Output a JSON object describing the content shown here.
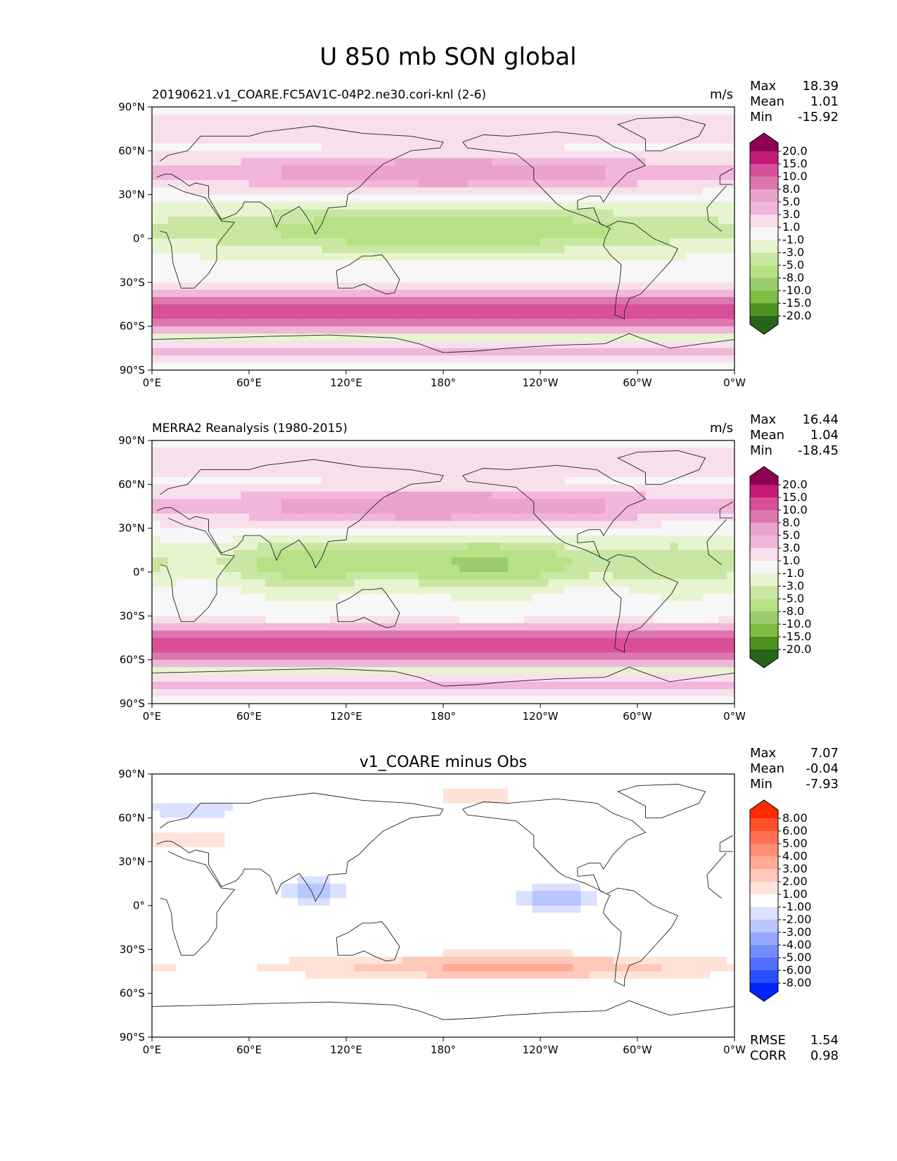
{
  "figure": {
    "title": "U 850 mb SON global"
  },
  "chart_data": [
    {
      "type": "heatmap",
      "id": "test",
      "title": "20190621.v1_COARE.FC5AV1C-04P2.ne30.cori-knl (2-6)",
      "units": "m/s",
      "stats": [
        {
          "label": "Max",
          "value": "18.39"
        },
        {
          "label": "Mean",
          "value": "1.01"
        },
        {
          "label": "Min",
          "value": "-15.92"
        }
      ],
      "colorbar": {
        "levels": [
          "20.0",
          "15.0",
          "10.0",
          "8.0",
          "5.0",
          "3.0",
          "1.0",
          "-1.0",
          "-3.0",
          "-5.0",
          "-8.0",
          "-10.0",
          "-15.0",
          "-20.0"
        ],
        "colors": [
          "#8e0152",
          "#c51b7d",
          "#d94f99",
          "#de77ae",
          "#eaa3cb",
          "#f1b6da",
          "#f8dfec",
          "#f7f7f7",
          "#e6f5d0",
          "#c9e7a3",
          "#b8e186",
          "#9bce6a",
          "#7fbc41",
          "#4d9221",
          "#276419"
        ]
      },
      "xlim": [
        0,
        360
      ],
      "ylim": [
        -90,
        90
      ]
    },
    {
      "type": "heatmap",
      "id": "ref",
      "title": "MERRA2 Reanalysis (1980-2015)",
      "units": "m/s",
      "stats": [
        {
          "label": "Max",
          "value": "16.44"
        },
        {
          "label": "Mean",
          "value": "1.04"
        },
        {
          "label": "Min",
          "value": "-18.45"
        }
      ],
      "colorbar": {
        "levels": [
          "20.0",
          "15.0",
          "10.0",
          "8.0",
          "5.0",
          "3.0",
          "1.0",
          "-1.0",
          "-3.0",
          "-5.0",
          "-8.0",
          "-10.0",
          "-15.0",
          "-20.0"
        ],
        "colors": [
          "#8e0152",
          "#c51b7d",
          "#d94f99",
          "#de77ae",
          "#eaa3cb",
          "#f1b6da",
          "#f8dfec",
          "#f7f7f7",
          "#e6f5d0",
          "#c9e7a3",
          "#b8e186",
          "#9bce6a",
          "#7fbc41",
          "#4d9221",
          "#276419"
        ]
      },
      "xlim": [
        0,
        360
      ],
      "ylim": [
        -90,
        90
      ]
    },
    {
      "type": "heatmap",
      "id": "diff",
      "title": "v1_COARE minus Obs",
      "units": "",
      "stats": [
        {
          "label": "Max",
          "value": "7.07"
        },
        {
          "label": "Mean",
          "value": "-0.04"
        },
        {
          "label": "Min",
          "value": "-7.93"
        }
      ],
      "metrics": [
        {
          "label": "RMSE",
          "value": "1.54"
        },
        {
          "label": "CORR",
          "value": "0.98"
        }
      ],
      "colorbar": {
        "levels": [
          "8.00",
          "6.00",
          "5.00",
          "4.00",
          "3.00",
          "2.00",
          "1.00",
          "-1.00",
          "-2.00",
          "-3.00",
          "-4.00",
          "-5.00",
          "-6.00",
          "-8.00"
        ],
        "colors": [
          "#ff2a00",
          "#ff4f2a",
          "#ff6e50",
          "#ff8c73",
          "#ffaa96",
          "#ffc8b9",
          "#ffe3d9",
          "#ffffff",
          "#d9e1ff",
          "#b9c6ff",
          "#96a9ff",
          "#738cff",
          "#506eff",
          "#2a4fff",
          "#0025ff"
        ]
      },
      "xlim": [
        0,
        360
      ],
      "ylim": [
        -90,
        90
      ]
    }
  ],
  "axes": {
    "xticks": [
      "0°E",
      "60°E",
      "120°E",
      "180°",
      "120°W",
      "60°W",
      "0°W"
    ],
    "yticks": [
      "90°N",
      "60°N",
      "30°N",
      "0°",
      "30°S",
      "60°S",
      "90°S"
    ]
  }
}
